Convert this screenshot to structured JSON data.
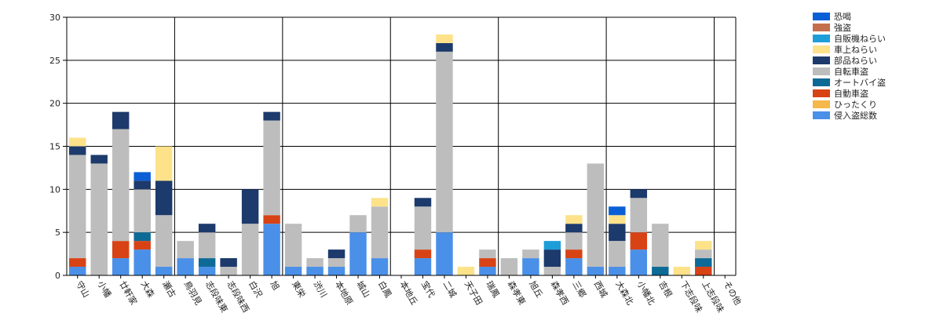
{
  "chart_data": {
    "type": "bar",
    "stacked": true,
    "categories": [
      "守山",
      "小幡",
      "廿軒家",
      "大森",
      "瀬古",
      "鳥羽見",
      "志段味東",
      "志段味西",
      "白沢",
      "旭",
      "東栄",
      "渋川",
      "本地原",
      "城山",
      "白鳳",
      "本地丘",
      "宝代",
      "二城",
      "天子田",
      "瑞鳳",
      "森孝東",
      "旭丘",
      "森孝西",
      "三郷",
      "西城",
      "大森北",
      "小幡北",
      "吉根",
      "下志段味",
      "上志段味",
      "その他"
    ],
    "ylim": [
      0,
      30
    ],
    "yticks": [
      0,
      5,
      10,
      15,
      20,
      25,
      30
    ],
    "grid": true,
    "legend_position": "right",
    "series": [
      {
        "name": "侵入盗総数",
        "color": "#4a90e8",
        "values": [
          1,
          0,
          2,
          3,
          1,
          2,
          1,
          0,
          0,
          6,
          1,
          1,
          1,
          5,
          2,
          0,
          2,
          5,
          0,
          1,
          0,
          2,
          0,
          2,
          1,
          1,
          3,
          0,
          0,
          0,
          0
        ]
      },
      {
        "name": "ひったくり",
        "color": "#f5b84a",
        "values": [
          0,
          0,
          0,
          0,
          0,
          0,
          0,
          0,
          0,
          0,
          0,
          0,
          0,
          0,
          0,
          0,
          0,
          0,
          0,
          0,
          0,
          0,
          0,
          0,
          0,
          0,
          0,
          0,
          0,
          0,
          0
        ]
      },
      {
        "name": "自動車盗",
        "color": "#d84315",
        "values": [
          1,
          0,
          2,
          1,
          0,
          0,
          0,
          0,
          0,
          1,
          0,
          0,
          0,
          0,
          0,
          0,
          1,
          0,
          0,
          1,
          0,
          0,
          0,
          1,
          0,
          0,
          2,
          0,
          0,
          1,
          0
        ]
      },
      {
        "name": "オートバイ盗",
        "color": "#0d6a96",
        "values": [
          0,
          0,
          0,
          1,
          0,
          0,
          1,
          0,
          0,
          0,
          0,
          0,
          0,
          0,
          0,
          0,
          0,
          0,
          0,
          0,
          0,
          0,
          0,
          0,
          0,
          0,
          0,
          1,
          0,
          1,
          0
        ]
      },
      {
        "name": "自転車盗",
        "color": "#bdbdbd",
        "values": [
          12,
          13,
          13,
          5,
          6,
          2,
          3,
          1,
          6,
          11,
          5,
          1,
          1,
          2,
          6,
          0,
          5,
          21,
          0,
          1,
          2,
          1,
          1,
          2,
          12,
          3,
          4,
          5,
          0,
          1,
          0
        ]
      },
      {
        "name": "部品ねらい",
        "color": "#1c3a6b",
        "values": [
          1,
          1,
          2,
          1,
          4,
          0,
          1,
          1,
          4,
          1,
          0,
          0,
          1,
          0,
          0,
          0,
          1,
          1,
          0,
          0,
          0,
          0,
          2,
          1,
          0,
          2,
          1,
          0,
          0,
          0,
          0
        ]
      },
      {
        "name": "車上ねらい",
        "color": "#fde28a",
        "values": [
          1,
          0,
          0,
          0,
          4,
          0,
          0,
          0,
          0,
          0,
          0,
          0,
          0,
          0,
          1,
          0,
          0,
          1,
          1,
          0,
          0,
          0,
          0,
          1,
          0,
          1,
          0,
          0,
          1,
          1,
          0
        ]
      },
      {
        "name": "自販機ねらい",
        "color": "#1e9ed8",
        "values": [
          0,
          0,
          0,
          0,
          0,
          0,
          0,
          0,
          0,
          0,
          0,
          0,
          0,
          0,
          0,
          0,
          0,
          0,
          0,
          0,
          0,
          0,
          1,
          0,
          0,
          0,
          0,
          0,
          0,
          0,
          0
        ]
      },
      {
        "name": "強盗",
        "color": "#c4704d",
        "values": [
          0,
          0,
          0,
          0,
          0,
          0,
          0,
          0,
          0,
          0,
          0,
          0,
          0,
          0,
          0,
          0,
          0,
          0,
          0,
          0,
          0,
          0,
          0,
          0,
          0,
          0,
          0,
          0,
          0,
          0,
          0
        ]
      },
      {
        "name": "恐喝",
        "color": "#0b5fd6",
        "values": [
          0,
          0,
          0,
          1,
          0,
          0,
          0,
          0,
          0,
          0,
          0,
          0,
          0,
          0,
          0,
          0,
          0,
          0,
          0,
          0,
          0,
          0,
          0,
          0,
          0,
          1,
          0,
          0,
          0,
          0,
          0
        ]
      }
    ],
    "legend_order": [
      "恐喝",
      "強盗",
      "自販機ねらい",
      "車上ねらい",
      "部品ねらい",
      "自転車盗",
      "オートバイ盗",
      "自動車盗",
      "ひったくり",
      "侵入盗総数"
    ]
  }
}
